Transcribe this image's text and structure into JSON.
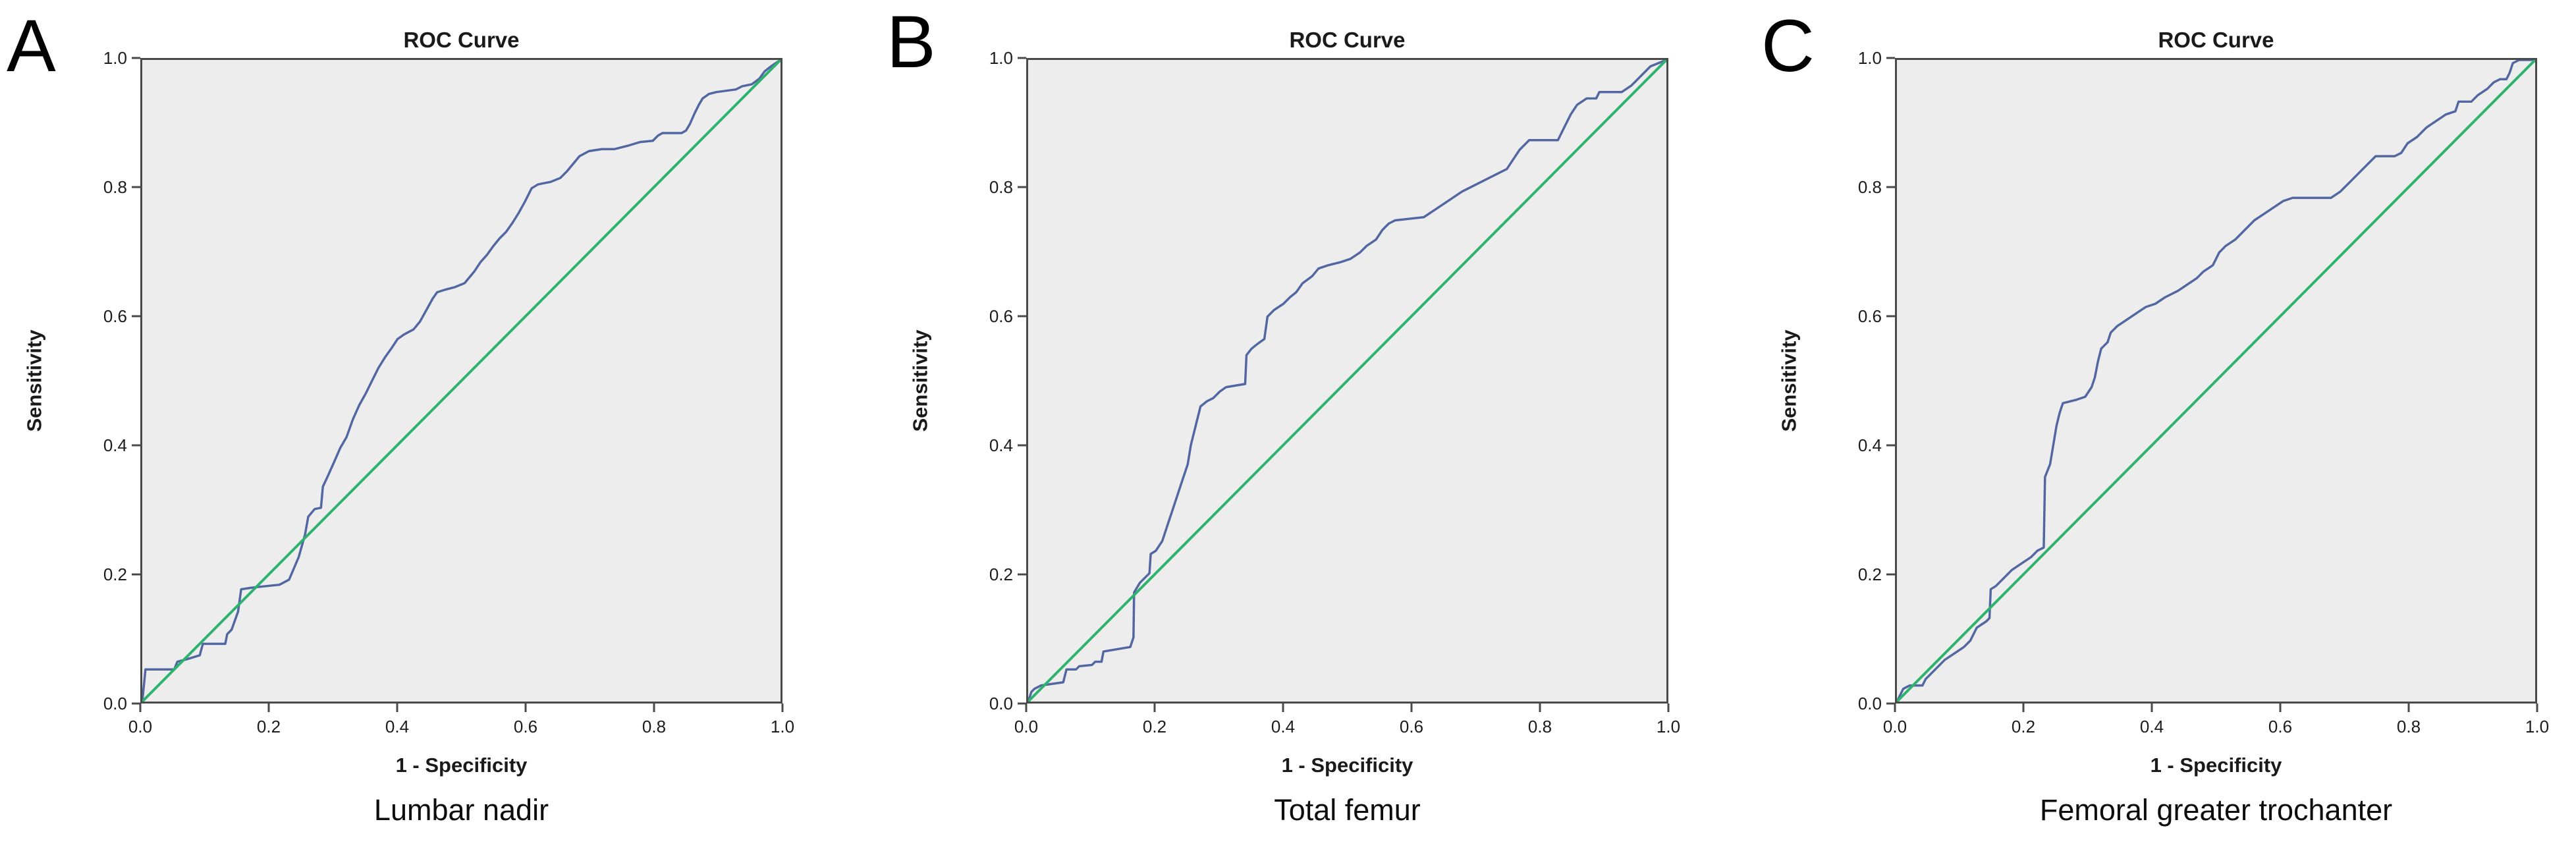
{
  "figure": {
    "description": "Three SPSS-style ROC curve plots side by side",
    "background_color": "#ffffff",
    "plot_background_color": "#ededed",
    "frame_color": "#4a4a4a",
    "roc_line_color": "#5267a1",
    "reference_line_color": "#2db36e"
  },
  "chart_data": [
    {
      "type": "line",
      "panel_label": "A",
      "title": "ROC Curve",
      "xlabel": "1 - Specificity",
      "ylabel": "Sensitivity",
      "caption": "Lumbar nadir",
      "xlim": [
        0,
        1
      ],
      "ylim": [
        0,
        1
      ],
      "xticks": [
        0.0,
        0.2,
        0.4,
        0.6,
        0.8,
        1.0
      ],
      "yticks": [
        0.0,
        0.2,
        0.4,
        0.6,
        0.8,
        1.0
      ],
      "grid": false,
      "legend": "none",
      "series": [
        {
          "name": "ROC curve",
          "color": "#5267a1",
          "width": 3.5,
          "points": [
            [
              0,
              0
            ],
            [
              0.005,
              0.05
            ],
            [
              0.05,
              0.05
            ],
            [
              0.055,
              0.062
            ],
            [
              0.07,
              0.066
            ],
            [
              0.09,
              0.072
            ],
            [
              0.095,
              0.09
            ],
            [
              0.13,
              0.09
            ],
            [
              0.133,
              0.105
            ],
            [
              0.14,
              0.112
            ],
            [
              0.15,
              0.14
            ],
            [
              0.155,
              0.175
            ],
            [
              0.175,
              0.178
            ],
            [
              0.215,
              0.182
            ],
            [
              0.23,
              0.19
            ],
            [
              0.245,
              0.225
            ],
            [
              0.255,
              0.26
            ],
            [
              0.26,
              0.288
            ],
            [
              0.27,
              0.3
            ],
            [
              0.28,
              0.302
            ],
            [
              0.283,
              0.335
            ],
            [
              0.29,
              0.35
            ],
            [
              0.3,
              0.372
            ],
            [
              0.31,
              0.395
            ],
            [
              0.32,
              0.412
            ],
            [
              0.33,
              0.44
            ],
            [
              0.34,
              0.462
            ],
            [
              0.35,
              0.48
            ],
            [
              0.36,
              0.5
            ],
            [
              0.37,
              0.52
            ],
            [
              0.38,
              0.536
            ],
            [
              0.39,
              0.55
            ],
            [
              0.4,
              0.565
            ],
            [
              0.41,
              0.572
            ],
            [
              0.425,
              0.58
            ],
            [
              0.435,
              0.592
            ],
            [
              0.445,
              0.61
            ],
            [
              0.455,
              0.628
            ],
            [
              0.462,
              0.638
            ],
            [
              0.475,
              0.642
            ],
            [
              0.49,
              0.646
            ],
            [
              0.505,
              0.652
            ],
            [
              0.52,
              0.67
            ],
            [
              0.53,
              0.685
            ],
            [
              0.54,
              0.696
            ],
            [
              0.55,
              0.71
            ],
            [
              0.56,
              0.722
            ],
            [
              0.57,
              0.732
            ],
            [
              0.58,
              0.746
            ],
            [
              0.59,
              0.762
            ],
            [
              0.6,
              0.78
            ],
            [
              0.61,
              0.8
            ],
            [
              0.62,
              0.806
            ],
            [
              0.64,
              0.81
            ],
            [
              0.655,
              0.816
            ],
            [
              0.665,
              0.826
            ],
            [
              0.675,
              0.838
            ],
            [
              0.685,
              0.85
            ],
            [
              0.7,
              0.858
            ],
            [
              0.72,
              0.861
            ],
            [
              0.74,
              0.861
            ],
            [
              0.76,
              0.866
            ],
            [
              0.78,
              0.872
            ],
            [
              0.8,
              0.874
            ],
            [
              0.808,
              0.882
            ],
            [
              0.815,
              0.886
            ],
            [
              0.845,
              0.886
            ],
            [
              0.852,
              0.89
            ],
            [
              0.858,
              0.9
            ],
            [
              0.865,
              0.916
            ],
            [
              0.872,
              0.93
            ],
            [
              0.878,
              0.94
            ],
            [
              0.888,
              0.947
            ],
            [
              0.9,
              0.95
            ],
            [
              0.93,
              0.954
            ],
            [
              0.94,
              0.959
            ],
            [
              0.955,
              0.962
            ],
            [
              0.967,
              0.971
            ],
            [
              0.975,
              0.982
            ],
            [
              0.985,
              0.99
            ],
            [
              1,
              1
            ]
          ]
        },
        {
          "name": "Reference line",
          "color": "#2db36e",
          "width": 4,
          "points": [
            [
              0,
              0
            ],
            [
              1,
              1
            ]
          ]
        }
      ]
    },
    {
      "type": "line",
      "panel_label": "B",
      "title": "ROC Curve",
      "xlabel": "1 - Specificity",
      "ylabel": "Sensitivity",
      "caption": "Total femur",
      "xlim": [
        0,
        1
      ],
      "ylim": [
        0,
        1
      ],
      "xticks": [
        0.0,
        0.2,
        0.4,
        0.6,
        0.8,
        1.0
      ],
      "yticks": [
        0.0,
        0.2,
        0.4,
        0.6,
        0.8,
        1.0
      ],
      "grid": false,
      "legend": "none",
      "series": [
        {
          "name": "ROC curve",
          "color": "#5267a1",
          "width": 3.5,
          "points": [
            [
              0,
              0
            ],
            [
              0.005,
              0.015
            ],
            [
              0.01,
              0.02
            ],
            [
              0.02,
              0.025
            ],
            [
              0.055,
              0.03
            ],
            [
              0.06,
              0.05
            ],
            [
              0.075,
              0.05
            ],
            [
              0.08,
              0.055
            ],
            [
              0.1,
              0.057
            ],
            [
              0.105,
              0.062
            ],
            [
              0.115,
              0.062
            ],
            [
              0.118,
              0.078
            ],
            [
              0.13,
              0.08
            ],
            [
              0.16,
              0.085
            ],
            [
              0.165,
              0.1
            ],
            [
              0.166,
              0.17
            ],
            [
              0.175,
              0.185
            ],
            [
              0.19,
              0.2
            ],
            [
              0.192,
              0.23
            ],
            [
              0.2,
              0.235
            ],
            [
              0.21,
              0.25
            ],
            [
              0.22,
              0.28
            ],
            [
              0.23,
              0.31
            ],
            [
              0.24,
              0.34
            ],
            [
              0.25,
              0.37
            ],
            [
              0.255,
              0.4
            ],
            [
              0.26,
              0.42
            ],
            [
              0.265,
              0.44
            ],
            [
              0.27,
              0.46
            ],
            [
              0.28,
              0.468
            ],
            [
              0.29,
              0.473
            ],
            [
              0.3,
              0.483
            ],
            [
              0.31,
              0.49
            ],
            [
              0.34,
              0.495
            ],
            [
              0.342,
              0.54
            ],
            [
              0.35,
              0.55
            ],
            [
              0.36,
              0.558
            ],
            [
              0.37,
              0.565
            ],
            [
              0.375,
              0.6
            ],
            [
              0.385,
              0.61
            ],
            [
              0.4,
              0.62
            ],
            [
              0.41,
              0.63
            ],
            [
              0.42,
              0.638
            ],
            [
              0.43,
              0.652
            ],
            [
              0.445,
              0.663
            ],
            [
              0.455,
              0.675
            ],
            [
              0.47,
              0.68
            ],
            [
              0.49,
              0.685
            ],
            [
              0.505,
              0.69
            ],
            [
              0.52,
              0.7
            ],
            [
              0.53,
              0.71
            ],
            [
              0.545,
              0.72
            ],
            [
              0.555,
              0.735
            ],
            [
              0.565,
              0.745
            ],
            [
              0.575,
              0.75
            ],
            [
              0.62,
              0.755
            ],
            [
              0.635,
              0.765
            ],
            [
              0.65,
              0.775
            ],
            [
              0.665,
              0.785
            ],
            [
              0.68,
              0.795
            ],
            [
              0.7,
              0.805
            ],
            [
              0.72,
              0.815
            ],
            [
              0.74,
              0.825
            ],
            [
              0.75,
              0.83
            ],
            [
              0.76,
              0.845
            ],
            [
              0.77,
              0.86
            ],
            [
              0.785,
              0.875
            ],
            [
              0.83,
              0.875
            ],
            [
              0.84,
              0.895
            ],
            [
              0.85,
              0.915
            ],
            [
              0.86,
              0.93
            ],
            [
              0.875,
              0.94
            ],
            [
              0.89,
              0.94
            ],
            [
              0.895,
              0.95
            ],
            [
              0.93,
              0.95
            ],
            [
              0.945,
              0.96
            ],
            [
              0.96,
              0.975
            ],
            [
              0.975,
              0.99
            ],
            [
              1,
              1
            ]
          ]
        },
        {
          "name": "Reference line",
          "color": "#2db36e",
          "width": 4,
          "points": [
            [
              0,
              0
            ],
            [
              1,
              1
            ]
          ]
        }
      ]
    },
    {
      "type": "line",
      "panel_label": "C",
      "title": "ROC Curve",
      "xlabel": "1 - Specificity",
      "ylabel": "Sensitivity",
      "caption": "Femoral greater trochanter",
      "xlim": [
        0,
        1
      ],
      "ylim": [
        0,
        1
      ],
      "xticks": [
        0.0,
        0.2,
        0.4,
        0.6,
        0.8,
        1.0
      ],
      "yticks": [
        0.0,
        0.2,
        0.4,
        0.6,
        0.8,
        1.0
      ],
      "grid": false,
      "legend": "none",
      "series": [
        {
          "name": "ROC curve",
          "color": "#5267a1",
          "width": 3.5,
          "points": [
            [
              0,
              0
            ],
            [
              0.01,
              0.02
            ],
            [
              0.02,
              0.025
            ],
            [
              0.04,
              0.025
            ],
            [
              0.045,
              0.035
            ],
            [
              0.06,
              0.05
            ],
            [
              0.075,
              0.065
            ],
            [
              0.09,
              0.075
            ],
            [
              0.105,
              0.085
            ],
            [
              0.115,
              0.095
            ],
            [
              0.12,
              0.105
            ],
            [
              0.125,
              0.115
            ],
            [
              0.14,
              0.125
            ],
            [
              0.145,
              0.13
            ],
            [
              0.147,
              0.175
            ],
            [
              0.155,
              0.18
            ],
            [
              0.165,
              0.19
            ],
            [
              0.18,
              0.205
            ],
            [
              0.195,
              0.215
            ],
            [
              0.21,
              0.225
            ],
            [
              0.22,
              0.235
            ],
            [
              0.23,
              0.24
            ],
            [
              0.232,
              0.35
            ],
            [
              0.24,
              0.37
            ],
            [
              0.245,
              0.4
            ],
            [
              0.25,
              0.43
            ],
            [
              0.255,
              0.45
            ],
            [
              0.26,
              0.465
            ],
            [
              0.28,
              0.47
            ],
            [
              0.295,
              0.475
            ],
            [
              0.305,
              0.49
            ],
            [
              0.31,
              0.505
            ],
            [
              0.315,
              0.53
            ],
            [
              0.32,
              0.55
            ],
            [
              0.33,
              0.56
            ],
            [
              0.335,
              0.575
            ],
            [
              0.345,
              0.585
            ],
            [
              0.36,
              0.595
            ],
            [
              0.375,
              0.605
            ],
            [
              0.39,
              0.615
            ],
            [
              0.405,
              0.62
            ],
            [
              0.42,
              0.63
            ],
            [
              0.44,
              0.64
            ],
            [
              0.455,
              0.65
            ],
            [
              0.47,
              0.66
            ],
            [
              0.48,
              0.67
            ],
            [
              0.495,
              0.68
            ],
            [
              0.505,
              0.7
            ],
            [
              0.515,
              0.71
            ],
            [
              0.53,
              0.72
            ],
            [
              0.545,
              0.735
            ],
            [
              0.56,
              0.75
            ],
            [
              0.575,
              0.76
            ],
            [
              0.59,
              0.77
            ],
            [
              0.605,
              0.78
            ],
            [
              0.62,
              0.785
            ],
            [
              0.68,
              0.785
            ],
            [
              0.695,
              0.795
            ],
            [
              0.71,
              0.81
            ],
            [
              0.725,
              0.825
            ],
            [
              0.74,
              0.84
            ],
            [
              0.75,
              0.85
            ],
            [
              0.78,
              0.85
            ],
            [
              0.79,
              0.855
            ],
            [
              0.8,
              0.87
            ],
            [
              0.815,
              0.88
            ],
            [
              0.83,
              0.895
            ],
            [
              0.845,
              0.905
            ],
            [
              0.86,
              0.915
            ],
            [
              0.875,
              0.92
            ],
            [
              0.88,
              0.935
            ],
            [
              0.9,
              0.935
            ],
            [
              0.91,
              0.945
            ],
            [
              0.925,
              0.955
            ],
            [
              0.935,
              0.965
            ],
            [
              0.945,
              0.97
            ],
            [
              0.955,
              0.97
            ],
            [
              0.96,
              0.98
            ],
            [
              0.965,
              0.995
            ],
            [
              0.975,
              1
            ],
            [
              1,
              1
            ]
          ]
        },
        {
          "name": "Reference line",
          "color": "#2db36e",
          "width": 4,
          "points": [
            [
              0,
              0
            ],
            [
              1,
              1
            ]
          ]
        }
      ]
    }
  ]
}
